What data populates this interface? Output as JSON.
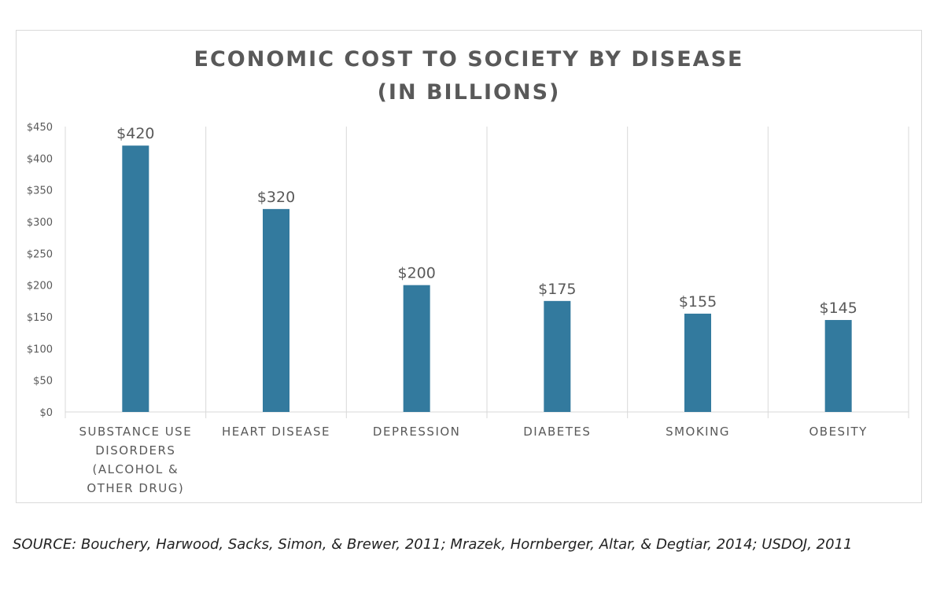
{
  "chart_data": {
    "type": "bar",
    "title_lines": [
      "ECONOMIC COST TO SOCIETY BY DISEASE",
      "(IN BILLIONS)"
    ],
    "categories": [
      [
        "SUBSTANCE USE",
        "DISORDERS",
        "(ALCOHOL &",
        "OTHER DRUG)"
      ],
      [
        "HEART DISEASE"
      ],
      [
        "DEPRESSION"
      ],
      [
        "DIABETES"
      ],
      [
        "SMOKING"
      ],
      [
        "OBESITY"
      ]
    ],
    "values": [
      420,
      320,
      200,
      175,
      155,
      145
    ],
    "data_labels": [
      "$420",
      "$320",
      "$200",
      "$175",
      "$155",
      "$145"
    ],
    "y_ticks": [
      "$0",
      "$50",
      "$100",
      "$150",
      "$200",
      "$250",
      "$300",
      "$350",
      "$400",
      "$450"
    ],
    "ylim": [
      0,
      450
    ],
    "y_step": 50,
    "xlabel": "",
    "ylabel": "",
    "grid": "vertical category separators",
    "legend": "none",
    "bar_color": "#337a9e",
    "axis_color": "#d9d9d9",
    "label_color": "#595959"
  },
  "source": "SOURCE: Bouchery, Harwood, Sacks, Simon, & Brewer, 2011; Mrazek, Hornberger, Altar, & Degtiar, 2014; USDOJ, 2011"
}
